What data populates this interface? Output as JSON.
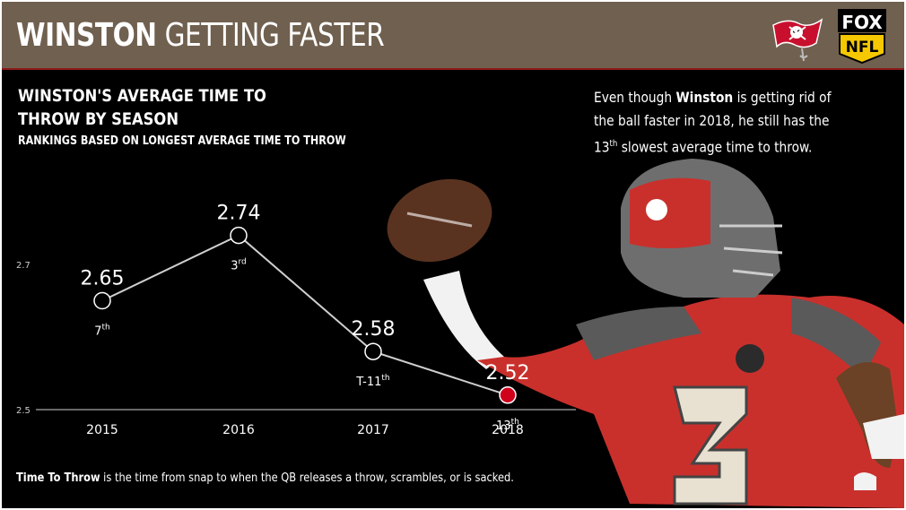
{
  "header": {
    "title_bold": "WINSTON",
    "title_rest": "GETTING FASTER",
    "brand_logo_text": [
      "FOX",
      "NFL"
    ],
    "team_logo": "buccaneers-flag-logo"
  },
  "note": {
    "before": "Even though ",
    "bold": "Winston",
    "after1": " is getting rid of the ball faster in 2018, he still has the ",
    "rank_num": "13",
    "rank_sup": "th",
    "after2": " slowest average time to throw."
  },
  "footer": {
    "bold": "Time To Throw",
    "text": " is the time from snap to when the QB releases a throw, scrambles, or is sacked."
  },
  "chart_data": {
    "type": "line",
    "title": "WINSTON'S AVERAGE TIME TO THROW BY SEASON",
    "subtitle": "RANKINGS BASED ON LONGEST AVERAGE TIME TO THROW",
    "xlabel": "",
    "ylabel": "",
    "categories": [
      "2015",
      "2016",
      "2017",
      "2018"
    ],
    "values": [
      2.65,
      2.74,
      2.58,
      2.52
    ],
    "value_labels": [
      "2.65",
      "2.74",
      "2.58",
      "2.52"
    ],
    "rank_labels": [
      {
        "num": "7",
        "sup": "th"
      },
      {
        "num": "3",
        "sup": "rd"
      },
      {
        "num": "T-11",
        "sup": "th"
      },
      {
        "num": "13",
        "sup": "th"
      }
    ],
    "y_ticks": [
      "2.7",
      "2.5"
    ],
    "highlight_index": 3,
    "colors": {
      "line": "#cfcfcf",
      "point": "#000000",
      "highlight": "#d0021b"
    }
  }
}
